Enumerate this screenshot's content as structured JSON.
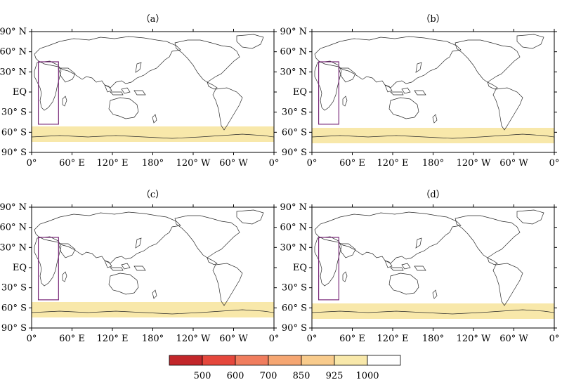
{
  "panels": [
    {
      "label": "（a）",
      "band": 0
    },
    {
      "label": "（b）",
      "band": 1
    },
    {
      "label": "（c）",
      "band": 0
    },
    {
      "label": "（d）",
      "band": 1
    }
  ],
  "lat_ticks": [
    {
      "label": "90° N",
      "lat": 90
    },
    {
      "label": "60° N",
      "lat": 60
    },
    {
      "label": "30° N",
      "lat": 30
    },
    {
      "label": "EQ",
      "lat": 0
    },
    {
      "label": "30° S",
      "lat": -30
    },
    {
      "label": "60° S",
      "lat": -60
    },
    {
      "label": "90° S",
      "lat": -90
    }
  ],
  "lon_ticks": [
    {
      "label": "0°",
      "lon": 0
    },
    {
      "label": "60° E",
      "lon": 60
    },
    {
      "label": "120° E",
      "lon": 120
    },
    {
      "label": "180°",
      "lon": 180
    },
    {
      "label": "120° W",
      "lon": 240
    },
    {
      "label": "60° W",
      "lon": 300
    },
    {
      "label": "0°",
      "lon": 360
    }
  ],
  "colorbar": {
    "levels": [
      "500",
      "600",
      "700",
      "850",
      "925",
      "1000"
    ],
    "colors": [
      "#c2262a",
      "#e5473c",
      "#f07d5e",
      "#f5a672",
      "#f8cb8c",
      "#f8e8aa",
      "#ffffff"
    ]
  },
  "highlight_box": {
    "lon_min": 10,
    "lon_max": 40,
    "lat_min": -48,
    "lat_max": 45,
    "color": "#7a2a7a"
  },
  "colors": {
    "ocean": "#ffffff",
    "coast": "#2a2a2a",
    "antarctic_band": "#f8e8aa"
  }
}
